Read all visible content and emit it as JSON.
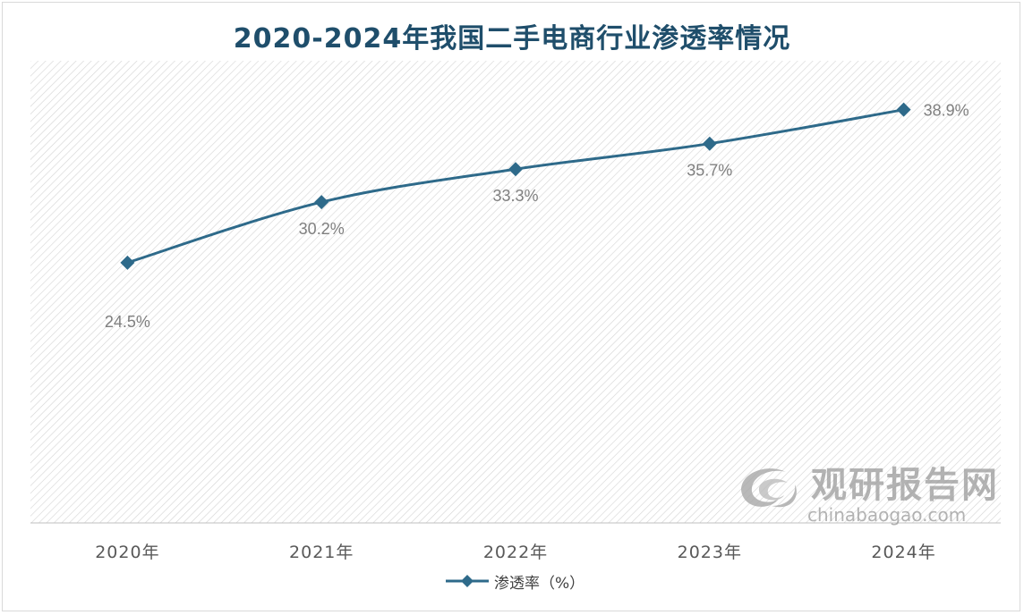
{
  "chart_data": {
    "type": "line",
    "title": "2020-2024年我国二手电商行业渗透率情况",
    "categories": [
      "2020年",
      "2021年",
      "2022年",
      "2023年",
      "2024年"
    ],
    "series": [
      {
        "name": "渗透率（%）",
        "values": [
          24.5,
          30.2,
          33.3,
          35.7,
          38.9
        ],
        "labels": [
          "24.5%",
          "30.2%",
          "33.3%",
          "35.7%",
          "38.9%"
        ],
        "color": "#2e6a8a"
      }
    ],
    "ylim": [
      0,
      43.5
    ],
    "grid": false,
    "legend": "bottom",
    "plot_background": "diagonal-hatch"
  },
  "watermark": {
    "cn": "观研报告网",
    "en": "chinabaogao.com",
    "icon": "swirl-logo-icon"
  }
}
